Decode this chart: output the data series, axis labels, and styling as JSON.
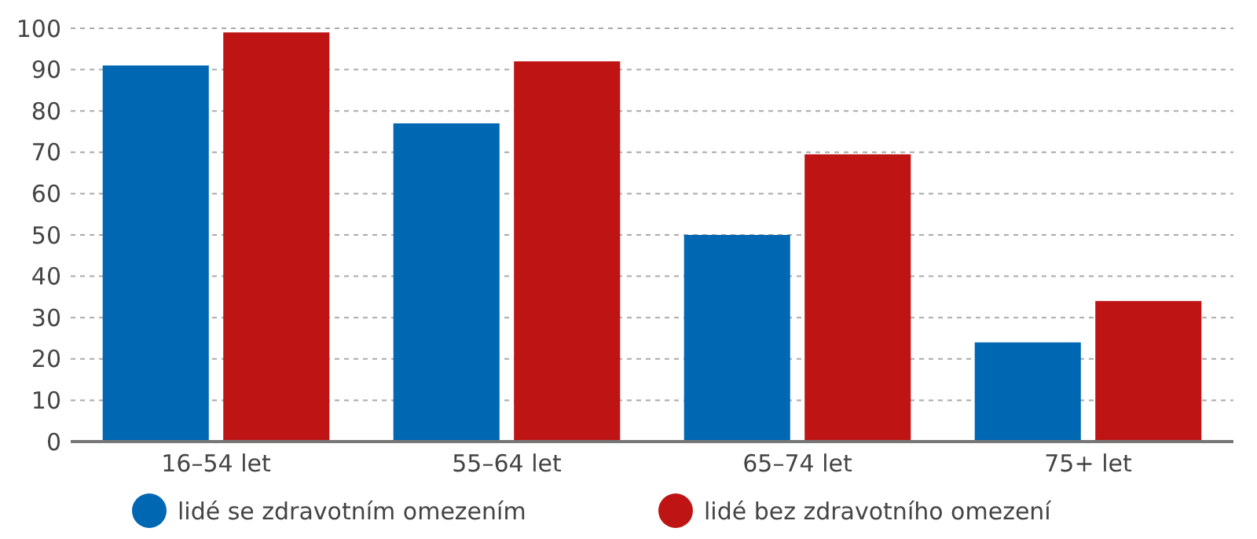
{
  "chart_data": {
    "type": "bar",
    "categories": [
      "16–54 let",
      "55–64 let",
      "65–74 let",
      "75+ let"
    ],
    "series": [
      {
        "name": "lidé se zdravotním omezením",
        "color": "#0068b3",
        "values": [
          91,
          77,
          50,
          24
        ]
      },
      {
        "name": "lidé bez zdravotního omezení",
        "color": "#be1414",
        "values": [
          99,
          92,
          69.5,
          34
        ]
      }
    ],
    "ylim": [
      0,
      100
    ],
    "yticks": [
      0,
      10,
      20,
      30,
      40,
      50,
      60,
      70,
      80,
      90,
      100
    ],
    "grid": "y",
    "legend": "bottom"
  }
}
